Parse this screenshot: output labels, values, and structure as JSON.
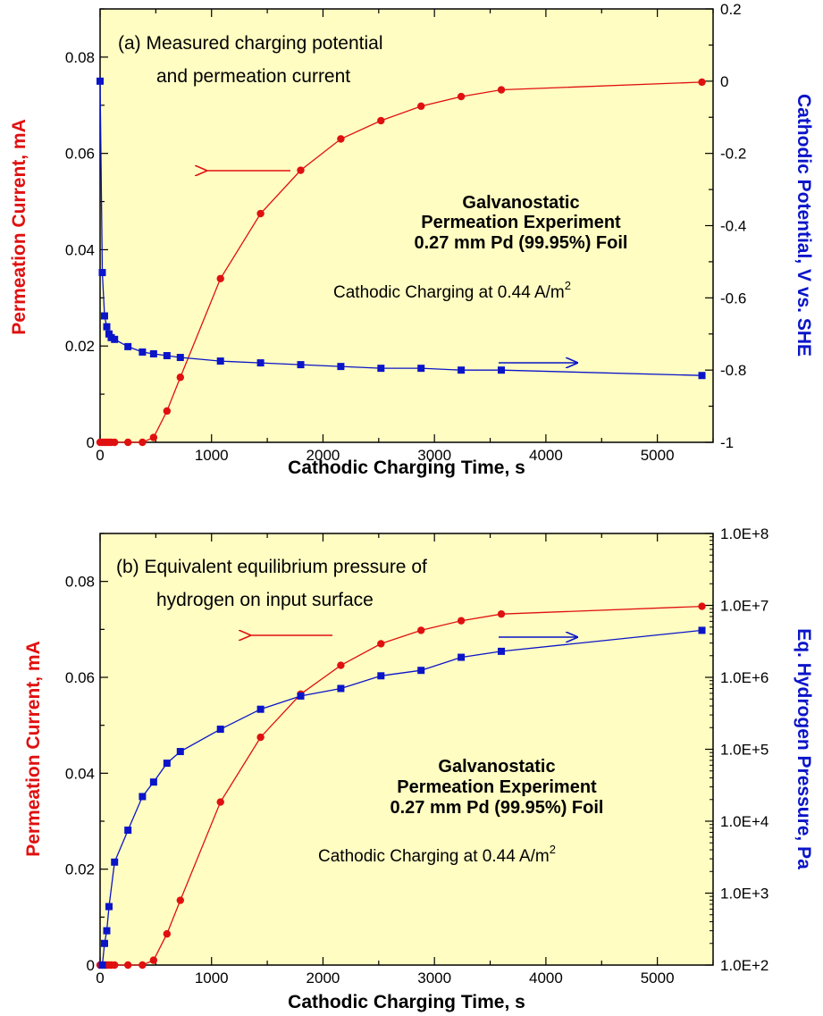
{
  "chart_data": [
    {
      "type": "line",
      "panel_title_line1": "(a) Measured charging potential",
      "panel_title_line2": "and permeation current",
      "xlabel": "Cathodic Charging Time, s",
      "ylabel_left": "Permeation Current, mA",
      "ylabel_right": "Cathodic Potential, V vs. SHE",
      "xlim": [
        0,
        5500
      ],
      "ylim_left": [
        0,
        0.09
      ],
      "ylim_right": [
        -1,
        0.2
      ],
      "x_ticks": [
        "0",
        "1000",
        "2000",
        "3000",
        "4000",
        "5000"
      ],
      "y_left_ticks": [
        "0",
        "0.02",
        "0.04",
        "0.06",
        "0.08"
      ],
      "y_right_ticks": [
        "-1",
        "-0.8",
        "-0.6",
        "-0.4",
        "-0.2",
        "0",
        "0.2"
      ],
      "annotation_line1": "Galvanostatic",
      "annotation_line2": "Permeation Experiment",
      "annotation_line3": "0.27 mm Pd (99.95%) Foil",
      "annotation_line4": "Cathodic Charging at 0.44 A/m",
      "annotation_sup": "2",
      "series": [
        {
          "axis": "left",
          "color": "#e01010",
          "marker": "circle",
          "x": [
            0,
            20,
            40,
            60,
            80,
            100,
            130,
            250,
            380,
            480,
            600,
            720,
            1080,
            1440,
            1800,
            2160,
            2520,
            2880,
            3240,
            3600,
            5400
          ],
          "y": [
            0,
            0,
            0,
            0,
            0,
            0,
            0,
            0,
            0,
            0.001,
            0.0065,
            0.0135,
            0.034,
            0.0475,
            0.0565,
            0.063,
            0.0668,
            0.0698,
            0.0718,
            0.0732,
            0.0748
          ]
        },
        {
          "axis": "right",
          "color": "#0a14c8",
          "marker": "square",
          "x": [
            0,
            20,
            40,
            60,
            80,
            100,
            130,
            250,
            380,
            480,
            600,
            720,
            1080,
            1440,
            1800,
            2160,
            2520,
            2880,
            3240,
            3600,
            5400
          ],
          "y": [
            0,
            -0.53,
            -0.65,
            -0.68,
            -0.7,
            -0.71,
            -0.715,
            -0.735,
            -0.75,
            -0.755,
            -0.76,
            -0.765,
            -0.775,
            -0.78,
            -0.785,
            -0.79,
            -0.795,
            -0.795,
            -0.8,
            -0.8,
            -0.815
          ]
        }
      ]
    },
    {
      "type": "line",
      "panel_title_line1": "(b) Equivalent equilibrium pressure of",
      "panel_title_line2": "hydrogen on input surface",
      "xlabel": "Cathodic Charging Time, s",
      "ylabel_left": "Permeation Current, mA",
      "ylabel_right": "Eq. Hydrogen Pressure, Pa",
      "xlim": [
        0,
        5500
      ],
      "ylim_left": [
        0,
        0.09
      ],
      "ylim_right": [
        100,
        100000000
      ],
      "right_scale": "log",
      "x_ticks": [
        "0",
        "1000",
        "2000",
        "3000",
        "4000",
        "5000"
      ],
      "y_left_ticks": [
        "0",
        "0.02",
        "0.04",
        "0.06",
        "0.08"
      ],
      "y_right_ticks": [
        "1.0E+2",
        "1.0E+3",
        "1.0E+4",
        "1.0E+5",
        "1.0E+6",
        "1.0E+7",
        "1.0E+8"
      ],
      "annotation_line1": "Galvanostatic",
      "annotation_line2": "Permeation Experiment",
      "annotation_line3": "0.27 mm Pd (99.95%) Foil",
      "annotation_line4": "Cathodic Charging at 0.44 A/m",
      "annotation_sup": "2",
      "series": [
        {
          "axis": "left",
          "color": "#e01010",
          "marker": "circle",
          "x": [
            0,
            20,
            40,
            60,
            80,
            100,
            130,
            250,
            380,
            480,
            600,
            720,
            1080,
            1440,
            1800,
            2160,
            2520,
            2880,
            3240,
            3600,
            5400
          ],
          "y": [
            0,
            0,
            0,
            0,
            0,
            0,
            0,
            0,
            0,
            0.001,
            0.0065,
            0.0135,
            0.034,
            0.0475,
            0.0565,
            0.0625,
            0.067,
            0.0698,
            0.0718,
            0.0732,
            0.0748
          ]
        },
        {
          "axis": "right",
          "color": "#0a14c8",
          "marker": "square",
          "x": [
            20,
            40,
            60,
            80,
            130,
            250,
            380,
            480,
            600,
            720,
            1080,
            1440,
            1800,
            2160,
            2520,
            2880,
            3240,
            3600,
            5400
          ],
          "y": [
            100,
            200,
            300,
            650,
            2700,
            7500,
            22000,
            35000,
            64000,
            93000,
            190000,
            360000,
            550000,
            700000,
            1050000,
            1250000,
            1900000,
            2300000,
            4500000
          ]
        }
      ]
    }
  ]
}
